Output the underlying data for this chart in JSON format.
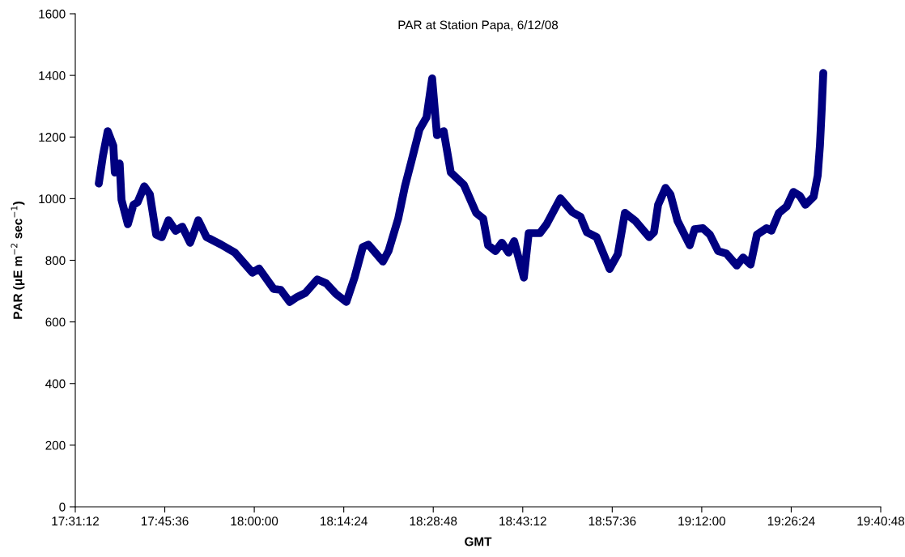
{
  "chart_data": {
    "type": "line",
    "title": "PAR at Station Papa, 6/12/08",
    "xlabel": "GMT",
    "ylabel": "PAR (μE m$^{−2}$ sec$^{−1}$)",
    "x": [
      17.583,
      17.594,
      17.607,
      17.622,
      17.626,
      17.639,
      17.644,
      17.661,
      17.676,
      17.687,
      17.705,
      17.72,
      17.737,
      17.752,
      17.77,
      17.789,
      17.807,
      17.828,
      17.85,
      17.872,
      17.911,
      17.948,
      17.995,
      18.013,
      18.052,
      18.071,
      18.095,
      18.115,
      18.137,
      18.169,
      18.193,
      18.219,
      18.247,
      18.269,
      18.291,
      18.306,
      18.345,
      18.36,
      18.386,
      18.404,
      18.421,
      18.443,
      18.462,
      18.477,
      18.49,
      18.508,
      18.527,
      18.562,
      18.595,
      18.614,
      18.627,
      18.647,
      18.664,
      18.682,
      18.697,
      18.723,
      18.736,
      18.766,
      18.784,
      18.821,
      18.853,
      18.875,
      18.892,
      18.918,
      18.953,
      18.975,
      18.994,
      19.022,
      19.059,
      19.072,
      19.083,
      19.103,
      19.116,
      19.135,
      19.168,
      19.181,
      19.203,
      19.222,
      19.244,
      19.266,
      19.294,
      19.311,
      19.331,
      19.348,
      19.374,
      19.387,
      19.407,
      19.428,
      19.446,
      19.463,
      19.478,
      19.5,
      19.511,
      19.517,
      19.522,
      19.526
    ],
    "series": [
      {
        "color": "#000080",
        "values": [
          1049,
          1138,
          1219,
          1172,
          1085,
          1114,
          996,
          917,
          980,
          988,
          1040,
          1014,
          883,
          875,
          930,
          896,
          909,
          857,
          930,
          875,
          851,
          825,
          760,
          773,
          707,
          704,
          665,
          681,
          694,
          738,
          725,
          691,
          665,
          744,
          843,
          851,
          796,
          830,
          935,
          1040,
          1119,
          1224,
          1264,
          1390,
          1206,
          1219,
          1085,
          1045,
          954,
          935,
          849,
          830,
          857,
          825,
          862,
          744,
          888,
          888,
          917,
          1001,
          956,
          941,
          891,
          875,
          772,
          820,
          954,
          928,
          875,
          891,
          980,
          1035,
          1014,
          928,
          849,
          901,
          904,
          883,
          830,
          822,
          783,
          809,
          786,
          883,
          904,
          896,
          954,
          975,
          1022,
          1009,
          980,
          1006,
          1075,
          1172,
          1295,
          1408
        ]
      }
    ],
    "xlim": [
      17.52,
      19.68
    ],
    "xticks": [
      {
        "value": 17.52,
        "label": "17:31:12"
      },
      {
        "value": 17.76,
        "label": "17:45:36"
      },
      {
        "value": 18.0,
        "label": "18:00:00"
      },
      {
        "value": 18.24,
        "label": "18:14:24"
      },
      {
        "value": 18.48,
        "label": "18:28:48"
      },
      {
        "value": 18.72,
        "label": "18:43:12"
      },
      {
        "value": 18.96,
        "label": "18:57:36"
      },
      {
        "value": 19.2,
        "label": "19:12:00"
      },
      {
        "value": 19.44,
        "label": "19:26:24"
      },
      {
        "value": 19.68,
        "label": "19:40:48"
      }
    ],
    "ylim": [
      0,
      1600
    ],
    "yticks": [
      0,
      200,
      400,
      600,
      800,
      1000,
      1200,
      1400,
      1600
    ],
    "grid": false,
    "legend": false,
    "marker": "none",
    "line_style": "solid"
  }
}
